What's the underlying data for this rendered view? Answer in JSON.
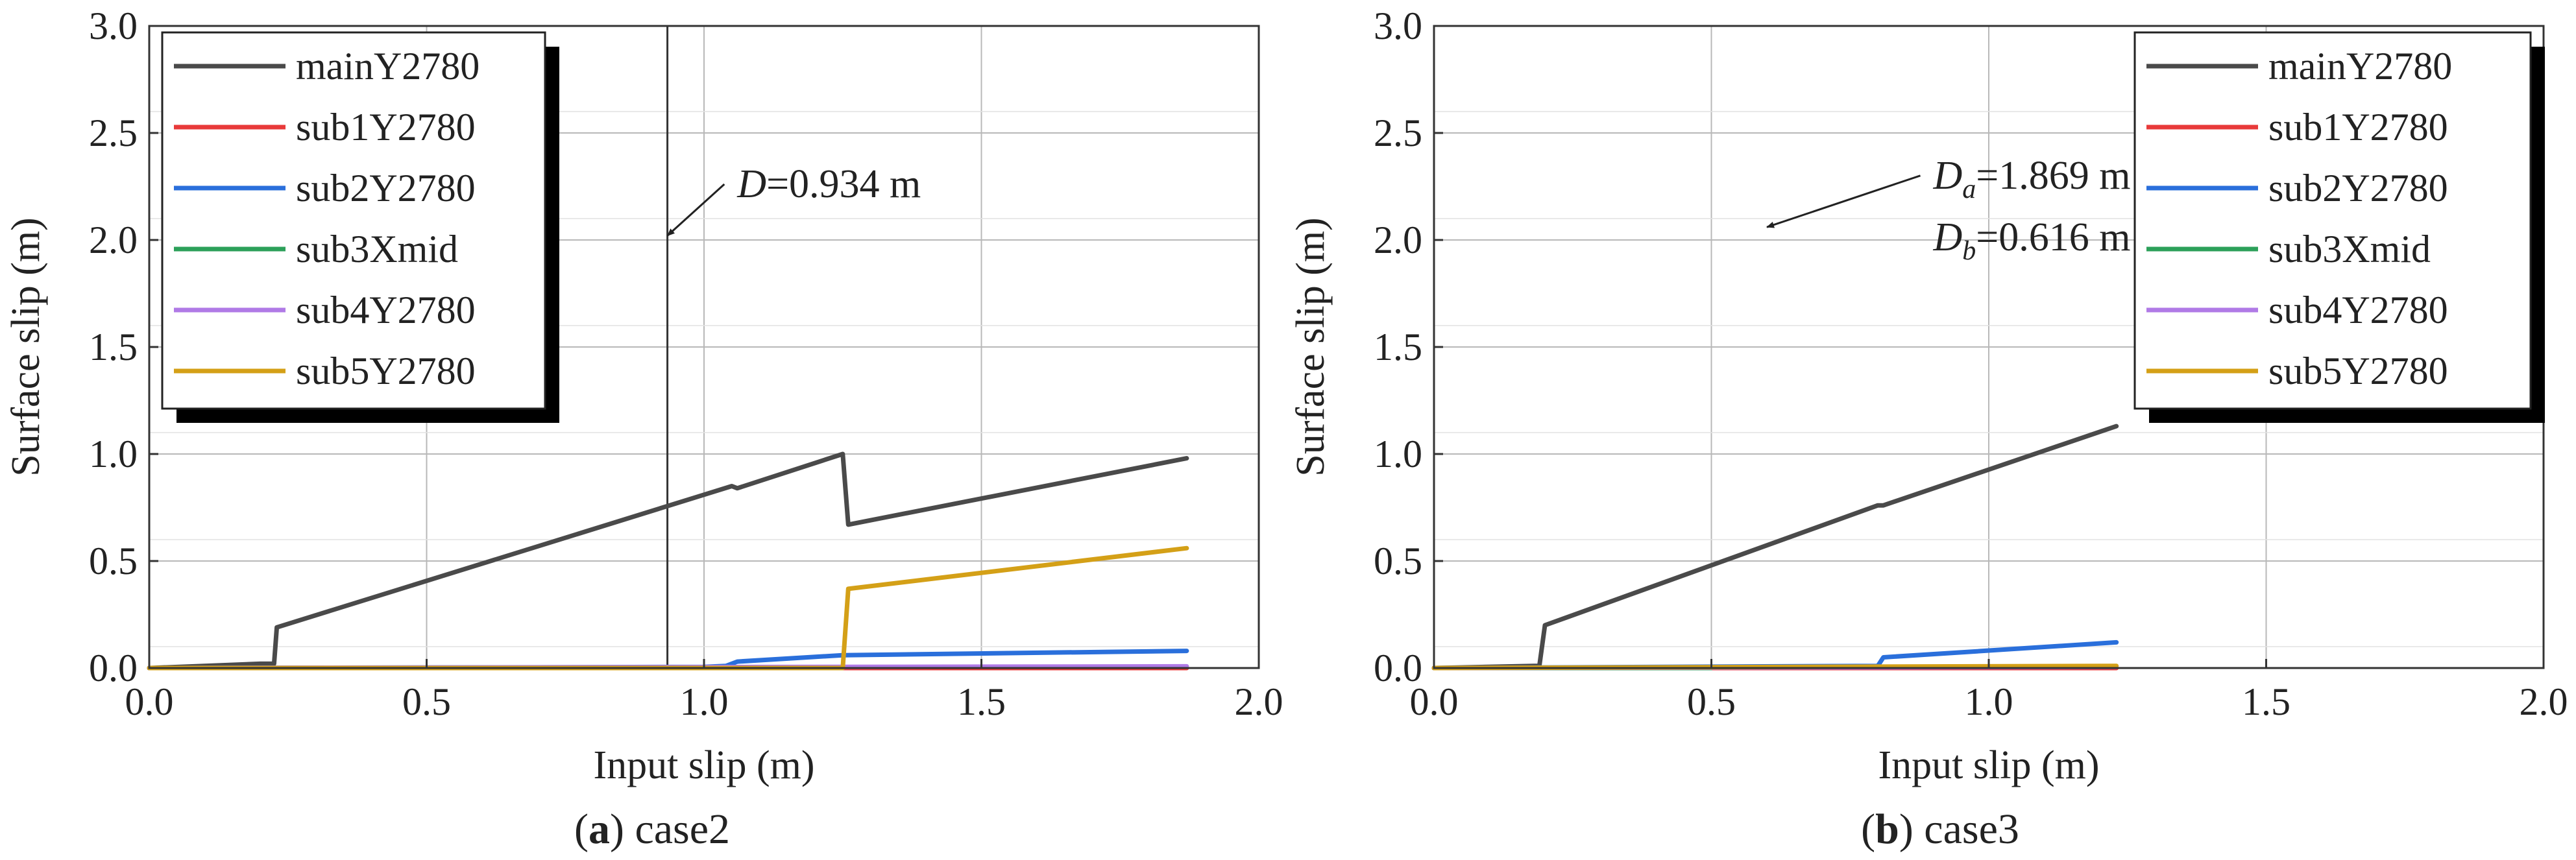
{
  "chart_data": [
    {
      "type": "line",
      "panel_letter": "a",
      "caption": "case2",
      "xlabel": "Input slip (m)",
      "ylabel": "Surface slip (m)",
      "xlim": [
        0,
        2
      ],
      "ylim": [
        0,
        3
      ],
      "xticks": [
        "0.0",
        "0.5",
        "1.0",
        "1.5",
        "2.0"
      ],
      "yticks": [
        "0.0",
        "0.5",
        "1.0",
        "1.5",
        "2.0",
        "2.5",
        "3.0"
      ],
      "grid": true,
      "legend_position": "top-left",
      "reference_lines": [
        0.934
      ],
      "annotations": [
        {
          "lines": [
            {
              "var": "D",
              "sub": "",
              "rest": "=0.934 m"
            }
          ],
          "target": [
            0.934,
            2.02
          ],
          "text_at": [
            1.06,
            2.2
          ]
        }
      ],
      "series": [
        {
          "name": "mainY2780",
          "color": "#4a4a4a",
          "x": [
            0,
            0.2,
            0.225,
            0.23,
            1.05,
            1.06,
            1.25,
            1.26,
            1.87
          ],
          "y": [
            0,
            0.02,
            0.02,
            0.19,
            0.85,
            0.84,
            1.0,
            0.67,
            0.98
          ]
        },
        {
          "name": "sub1Y2780",
          "color": "#e83a3a",
          "x": [
            0,
            1.87
          ],
          "y": [
            0,
            0
          ]
        },
        {
          "name": "sub2Y2780",
          "color": "#2a6fdb",
          "x": [
            0,
            1.0,
            1.04,
            1.06,
            1.25,
            1.87
          ],
          "y": [
            0,
            0.005,
            0.01,
            0.03,
            0.06,
            0.08
          ]
        },
        {
          "name": "sub3Xmid",
          "color": "#2ca05a",
          "x": [
            0,
            0.5
          ],
          "y": [
            0,
            0
          ]
        },
        {
          "name": "sub4Y2780",
          "color": "#b07ae6",
          "x": [
            0,
            1.87
          ],
          "y": [
            0,
            0.008
          ]
        },
        {
          "name": "sub5Y2780",
          "color": "#d4a017",
          "x": [
            0,
            1.25,
            1.26,
            1.87
          ],
          "y": [
            0,
            0,
            0.37,
            0.56
          ]
        }
      ]
    },
    {
      "type": "line",
      "panel_letter": "b",
      "caption": "case3",
      "xlabel": "Input slip (m)",
      "ylabel": "Surface slip (m)",
      "xlim": [
        0,
        2
      ],
      "ylim": [
        0,
        3
      ],
      "xticks": [
        "0.0",
        "0.5",
        "1.0",
        "1.5",
        "2.0"
      ],
      "yticks": [
        "0.0",
        "0.5",
        "1.0",
        "1.5",
        "2.0",
        "2.5",
        "3.0"
      ],
      "grid": true,
      "legend_position": "top-right",
      "reference_lines": [],
      "annotations": [
        {
          "lines": [
            {
              "var": "D",
              "sub": "a",
              "rest": "=1.869 m"
            },
            {
              "var": "D",
              "sub": "b",
              "rest": "=0.616 m"
            }
          ],
          "target": [
            0.6,
            2.06
          ],
          "text_at": [
            0.9,
            2.24
          ]
        }
      ],
      "series": [
        {
          "name": "mainY2780",
          "color": "#4a4a4a",
          "x": [
            0,
            0.18,
            0.19,
            0.2,
            0.8,
            0.81,
            1.23
          ],
          "y": [
            0,
            0.01,
            0.01,
            0.2,
            0.76,
            0.76,
            1.13
          ]
        },
        {
          "name": "sub1Y2780",
          "color": "#e83a3a",
          "x": [
            0,
            1.23
          ],
          "y": [
            0,
            0
          ]
        },
        {
          "name": "sub2Y2780",
          "color": "#2a6fdb",
          "x": [
            0,
            0.8,
            0.81,
            1.23
          ],
          "y": [
            0,
            0.01,
            0.05,
            0.12
          ]
        },
        {
          "name": "sub3Xmid",
          "color": "#2ca05a",
          "x": [
            0,
            0.5
          ],
          "y": [
            0,
            0
          ]
        },
        {
          "name": "sub4Y2780",
          "color": "#b07ae6",
          "x": [
            0,
            1.23
          ],
          "y": [
            0,
            0.005
          ]
        },
        {
          "name": "sub5Y2780",
          "color": "#d4a017",
          "x": [
            0,
            1.23
          ],
          "y": [
            0,
            0.01
          ]
        }
      ]
    }
  ]
}
